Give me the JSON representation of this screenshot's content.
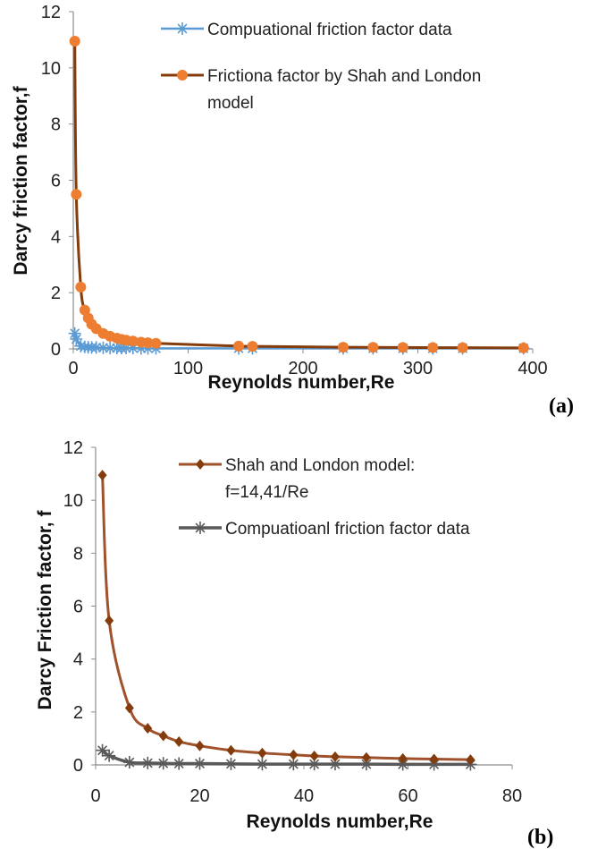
{
  "chart_data": [
    {
      "type": "line",
      "panel_label": "(a)",
      "xlabel": "Reynolds number,Re",
      "ylabel": "Darcy friction factor,f",
      "xlim": [
        0,
        400
      ],
      "ylim": [
        0,
        12
      ],
      "x_ticks": [
        "0",
        "100",
        "200",
        "300",
        "400"
      ],
      "y_ticks": [
        "0",
        "2",
        "4",
        "6",
        "8",
        "10",
        "12"
      ],
      "grid": false,
      "legend_position": "top-right",
      "series": [
        {
          "name": "Compuational friction factor data",
          "marker": "asterisk",
          "color": "#5b9bd5",
          "x": [
            1.3,
            2.6,
            6.5,
            10,
            13,
            16,
            20,
            26,
            32,
            38,
            42,
            46,
            52,
            59,
            65,
            72,
            144,
            156,
            235,
            261,
            287,
            313,
            339,
            392
          ],
          "y": [
            0.55,
            0.35,
            0.1,
            0.07,
            0.06,
            0.05,
            0.05,
            0.04,
            0.03,
            0.03,
            0.03,
            0.03,
            0.03,
            0.02,
            0.02,
            0.02,
            0.02,
            0.02,
            0.02,
            0.02,
            0.02,
            0.02,
            0.02,
            0.02
          ]
        },
        {
          "name": "Frictiona factor by Shah and London model",
          "marker": "circle",
          "color": "#843c0c",
          "marker_color": "#ed7d31",
          "x": [
            1.3,
            2.6,
            6.5,
            10,
            13,
            16,
            20,
            26,
            32,
            38,
            42,
            46,
            52,
            59,
            65,
            72,
            144,
            156,
            235,
            261,
            287,
            313,
            339,
            392
          ],
          "y": [
            10.95,
            5.5,
            2.2,
            1.38,
            1.1,
            0.88,
            0.72,
            0.55,
            0.45,
            0.38,
            0.34,
            0.31,
            0.28,
            0.24,
            0.22,
            0.2,
            0.1,
            0.09,
            0.06,
            0.055,
            0.05,
            0.046,
            0.042,
            0.037
          ]
        }
      ]
    },
    {
      "type": "line",
      "panel_label": "(b)",
      "xlabel": "Reynolds number,Re",
      "ylabel": "Darcy Friction factor, f",
      "xlim": [
        0,
        80
      ],
      "ylim": [
        0,
        12
      ],
      "x_ticks": [
        "0",
        "20",
        "40",
        "60",
        "80"
      ],
      "y_ticks": [
        "0",
        "2",
        "4",
        "6",
        "8",
        "10",
        "12"
      ],
      "grid": false,
      "legend_position": "top-right",
      "series": [
        {
          "name": "Shah and London model:",
          "name_line2": "f=14,41/Re",
          "marker": "diamond",
          "color": "#a0522d",
          "marker_color": "#843c0c",
          "x": [
            1.3,
            2.6,
            6.5,
            10,
            13,
            16,
            20,
            26,
            32,
            38,
            42,
            46,
            52,
            59,
            65,
            72
          ],
          "y": [
            10.95,
            5.45,
            2.15,
            1.38,
            1.1,
            0.88,
            0.72,
            0.55,
            0.45,
            0.38,
            0.34,
            0.31,
            0.28,
            0.24,
            0.22,
            0.2
          ]
        },
        {
          "name": "Compuatioanl friction factor data",
          "marker": "asterisk",
          "color": "#595959",
          "x": [
            1.3,
            2.6,
            6.5,
            10,
            13,
            16,
            20,
            26,
            32,
            38,
            42,
            46,
            52,
            59,
            65,
            72
          ],
          "y": [
            0.55,
            0.35,
            0.1,
            0.07,
            0.06,
            0.05,
            0.05,
            0.04,
            0.03,
            0.03,
            0.03,
            0.03,
            0.03,
            0.02,
            0.02,
            0.02
          ]
        }
      ]
    }
  ]
}
